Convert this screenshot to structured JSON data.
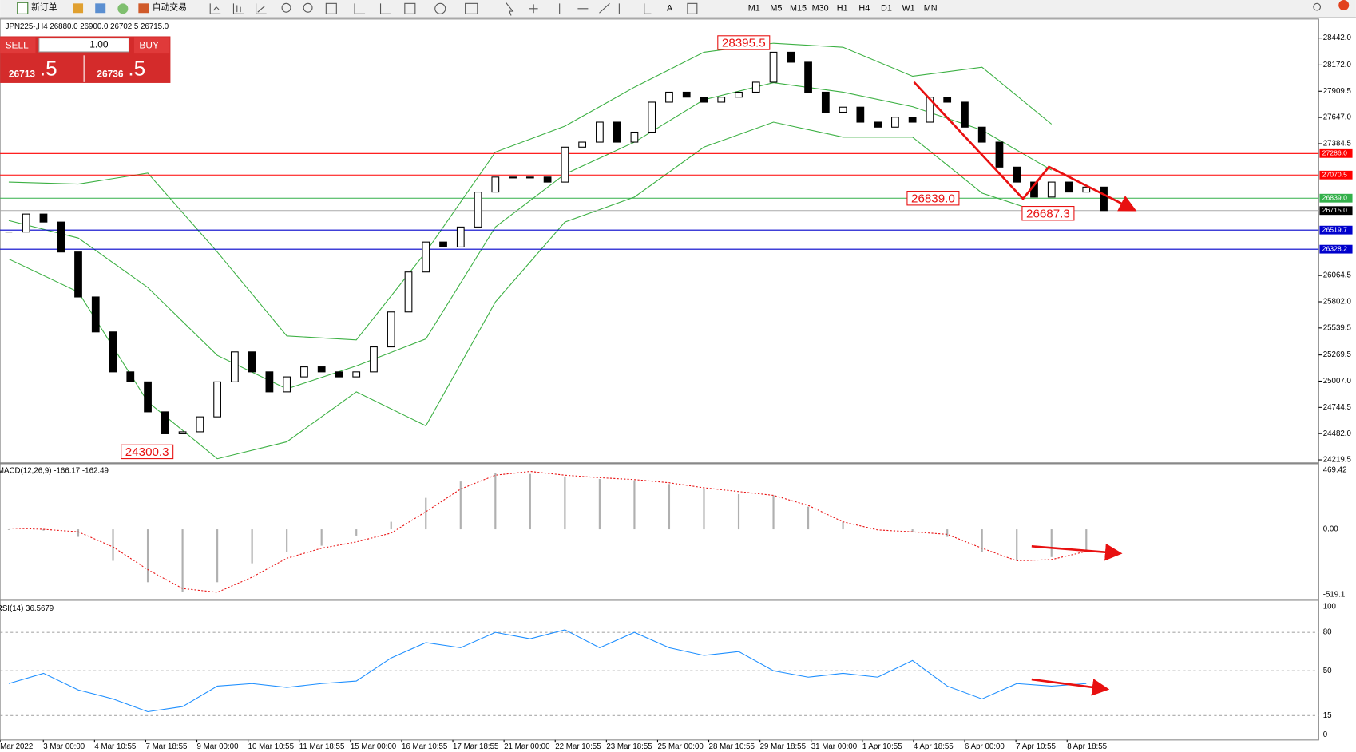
{
  "symbol_header": "JPN225-,H4  26880.0 26900.0 26702.5 26715.0",
  "toolbar": {
    "new_order": "新订单",
    "auto_trading": "自动交易",
    "timeframes": [
      "M1",
      "M5",
      "M15",
      "M30",
      "H1",
      "H4",
      "D1",
      "W1",
      "MN"
    ]
  },
  "trade_panel": {
    "sell": "SELL",
    "lot": "1.00",
    "buy": "BUY",
    "sell_price": "26713",
    "sell_price_big": ".5",
    "buy_price": "26736",
    "buy_price_big": ".5"
  },
  "chart_data": [
    {
      "type": "candlestick",
      "closes": [
        26500,
        26680,
        26600,
        26300,
        25850,
        25500,
        25100,
        25000,
        24700,
        24480,
        24500,
        24650,
        25000,
        25300,
        25100,
        24900,
        25050,
        25150,
        25100,
        25050,
        25100,
        25350,
        25700,
        26100,
        26400,
        26350,
        26550,
        26900,
        27050,
        27050,
        27050,
        27000,
        27350,
        27400,
        27600,
        27400,
        27500,
        27800,
        27900,
        27850,
        27800,
        27850,
        27900,
        28000,
        28300,
        28200,
        27900,
        27700,
        27750,
        27600,
        27550,
        27650,
        27600,
        27850,
        27800,
        27550,
        27400,
        27150,
        27000,
        26850,
        27000,
        26900,
        26950,
        26715
      ],
      "bands": {
        "color": "#3cb043",
        "upper": [
          27000,
          26980,
          27090,
          26300,
          25460,
          25420,
          26300,
          27300,
          27560,
          27950,
          28300,
          28390,
          28350,
          28060,
          28150,
          27580
        ],
        "middle": [
          26615,
          26440,
          25945,
          25265,
          24930,
          25160,
          25430,
          26550,
          27080,
          27400,
          27825,
          27995,
          27900,
          27755,
          27520,
          27120
        ],
        "lower": [
          26230,
          25900,
          24800,
          24230,
          24400,
          24900,
          24560,
          25800,
          26600,
          26850,
          27350,
          27600,
          27450,
          27450,
          26890,
          26660
        ]
      },
      "ylim": [
        24219.5,
        28442
      ],
      "yticks": [
        {
          "value": 28442,
          "label": "28442.0"
        },
        {
          "value": 28172,
          "label": "28172.0"
        },
        27909.5,
        {
          "value": 27647,
          "label": "27647.0"
        },
        27384.5,
        26064.5,
        {
          "value": 25802,
          "label": "25802.0"
        },
        25539.5,
        25269.5,
        {
          "value": 25007,
          "label": "25007.0"
        },
        24744.5,
        {
          "value": 24482,
          "label": "24482.0"
        },
        24219.5
      ],
      "levels": [
        {
          "value": 27286,
          "label": "27286.0",
          "color": "#ff0000"
        },
        {
          "value": 27070.5,
          "label": "27070.5",
          "color": "#ff0000"
        },
        {
          "value": 26839,
          "label": "26839.0",
          "color": "#33b04a"
        },
        {
          "value": 26715,
          "label": "26715.0",
          "color": "#000000"
        },
        {
          "value": 26519.7,
          "label": "26519.7",
          "color": "#0000cc"
        },
        {
          "value": 26328.2,
          "label": "26328.2",
          "color": "#0000cc"
        }
      ],
      "annotations": [
        {
          "value": 28395.5,
          "label": "28395.5"
        },
        {
          "value": 24300.3,
          "label": "24300.3"
        },
        {
          "value": 26839,
          "label": "26839.0"
        },
        {
          "value": 26687.3,
          "label": "26687.3"
        }
      ],
      "x": [
        "Mar 2022",
        "3 Mar 00:00",
        "4 Mar 10:55",
        "7 Mar 18:55",
        "9 Mar 00:00",
        "10 Mar 10:55",
        "11 Mar 18:55",
        "15 Mar 00:00",
        "16 Mar 10:55",
        "17 Mar 18:55",
        "21 Mar 00:00",
        "22 Mar 10:55",
        "23 Mar 18:55",
        "25 Mar 00:00",
        "28 Mar 10:55",
        "29 Mar 18:55",
        "31 Mar 00:00",
        "1 Apr 10:55",
        "4 Apr 18:55",
        "6 Apr 00:00",
        "7 Apr 10:55",
        "8 Apr 18:55"
      ]
    },
    {
      "type": "macd",
      "label": "MACD(12,26,9) -166.17 -162.49",
      "histogram": [
        -5,
        -10,
        -60,
        -250,
        -420,
        -500,
        -420,
        -270,
        -180,
        -130,
        -50,
        60,
        250,
        380,
        450,
        440,
        420,
        400,
        390,
        360,
        320,
        280,
        270,
        180,
        60,
        0,
        -20,
        -60,
        -180,
        -250,
        -220,
        -170
      ],
      "signal": [
        10,
        0,
        -20,
        -140,
        -320,
        -470,
        -500,
        -380,
        -230,
        -150,
        -100,
        -30,
        140,
        320,
        430,
        460,
        430,
        410,
        395,
        370,
        330,
        300,
        270,
        190,
        60,
        -5,
        -20,
        -40,
        -150,
        -250,
        -240,
        -175
      ],
      "ylim": [
        -519.1,
        469.42
      ],
      "yticks": [
        469.42,
        {
          "value": 0,
          "label": "0.00"
        },
        -519.1
      ]
    },
    {
      "type": "rsi",
      "label": "RSI(14) 36.5679",
      "color": "#1e8fff",
      "values": [
        40,
        48,
        35,
        28,
        18,
        22,
        38,
        40,
        37,
        40,
        42,
        60,
        72,
        68,
        80,
        75,
        82,
        68,
        80,
        68,
        62,
        65,
        50,
        45,
        48,
        45,
        58,
        38,
        28,
        40,
        38,
        40
      ],
      "ylim": [
        0,
        100
      ],
      "yticks": [
        0,
        15,
        50,
        80,
        100
      ]
    }
  ]
}
